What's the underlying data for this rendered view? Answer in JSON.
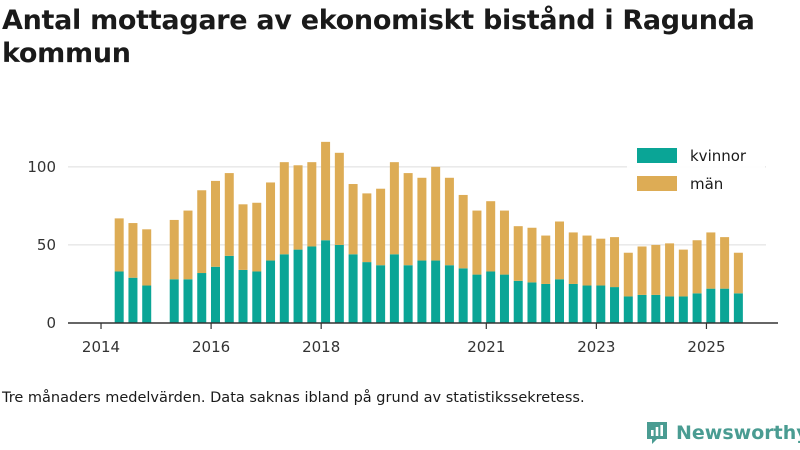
{
  "chart_data": {
    "type": "bar",
    "stacked": true,
    "title": "Antal mottagare av ekonomiskt bistånd i Ragunda kommun",
    "note": "Tre månaders medelvärden. Data saknas ibland på grund av statistikssekretess.",
    "ylim": [
      0,
      130
    ],
    "yticks": [
      0,
      50,
      100
    ],
    "xlim": [
      2013.4,
      2026.3
    ],
    "xticks": [
      {
        "label": "2014",
        "value": 2014.0
      },
      {
        "label": "2016",
        "value": 2016.0
      },
      {
        "label": "2018",
        "value": 2018.0
      },
      {
        "label": "2021",
        "value": 2021.0
      },
      {
        "label": "2023",
        "value": 2023.0
      },
      {
        "label": "2025",
        "value": 2025.0
      }
    ],
    "x": [
      2014.33,
      2014.58,
      2014.83,
      2015.33,
      2015.58,
      2015.83,
      2016.08,
      2016.33,
      2016.58,
      2016.83,
      2017.08,
      2017.33,
      2017.58,
      2017.83,
      2018.08,
      2018.33,
      2018.58,
      2018.83,
      2019.08,
      2019.33,
      2019.58,
      2019.83,
      2020.08,
      2020.33,
      2020.58,
      2020.83,
      2021.08,
      2021.33,
      2021.58,
      2021.83,
      2022.08,
      2022.33,
      2022.58,
      2022.83,
      2023.08,
      2023.33,
      2023.58,
      2023.83,
      2024.08,
      2024.33,
      2024.58,
      2024.83,
      2025.08,
      2025.33,
      2025.58
    ],
    "series": [
      {
        "name": "kvinnor",
        "color": "#0aa596",
        "values": [
          33,
          29,
          24,
          28,
          28,
          32,
          36,
          43,
          34,
          33,
          40,
          44,
          47,
          49,
          53,
          50,
          44,
          39,
          37,
          44,
          37,
          40,
          40,
          37,
          35,
          31,
          33,
          31,
          27,
          26,
          25,
          28,
          25,
          24,
          24,
          23,
          17,
          18,
          18,
          17,
          17,
          19,
          22,
          22,
          19
        ]
      },
      {
        "name": "män",
        "color": "#ddac55",
        "values": [
          34,
          35,
          36,
          38,
          44,
          53,
          55,
          53,
          42,
          44,
          50,
          59,
          54,
          54,
          63,
          59,
          45,
          44,
          49,
          59,
          59,
          53,
          60,
          56,
          47,
          41,
          45,
          41,
          35,
          35,
          31,
          37,
          33,
          32,
          30,
          32,
          28,
          31,
          32,
          34,
          30,
          34,
          36,
          33,
          26
        ]
      }
    ],
    "legend": "top-right",
    "grid": true
  },
  "brand": {
    "name": "Newsworthy"
  }
}
